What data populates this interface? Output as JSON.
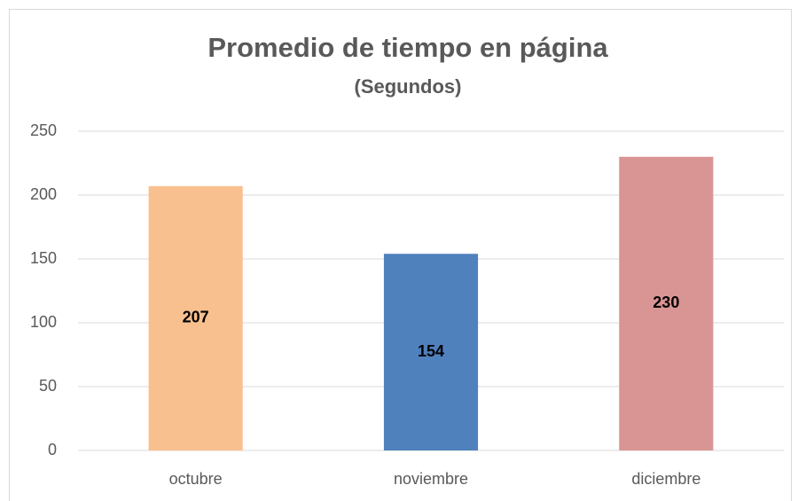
{
  "chart_data": {
    "type": "bar",
    "title": "Promedio de tiempo en página",
    "subtitle": "(Segundos)",
    "categories": [
      "octubre",
      "noviembre",
      "diciembre"
    ],
    "values": [
      207,
      154,
      230
    ],
    "colors": [
      "#f9c08f",
      "#4f81bd",
      "#d99594"
    ],
    "ylim": [
      0,
      250
    ],
    "yticks": [
      0,
      50,
      100,
      150,
      200,
      250
    ],
    "grid": true
  }
}
